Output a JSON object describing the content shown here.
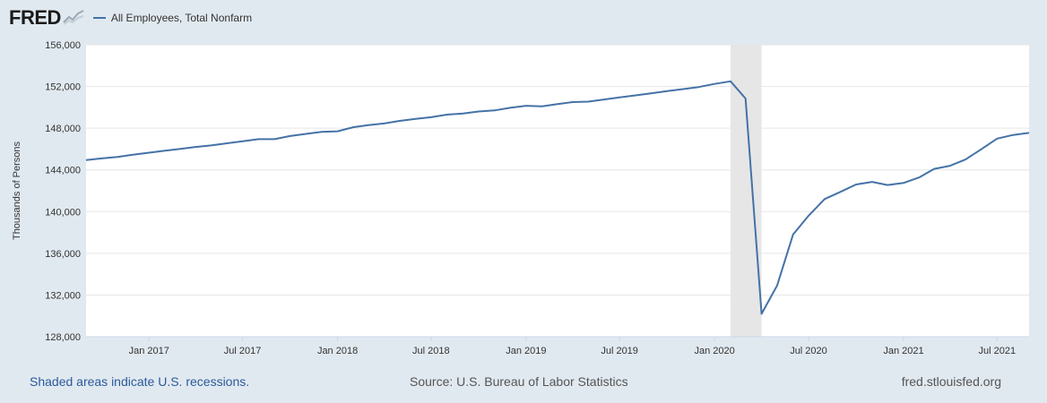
{
  "header": {
    "logo_text": "FRED",
    "logo_icon": "line-chart-icon"
  },
  "chart_data": {
    "type": "line",
    "series": [
      {
        "name": "All Employees, Total Nonfarm",
        "color": "#4572a7",
        "x": [
          "2016-09-01",
          "2016-10-01",
          "2016-11-01",
          "2016-12-01",
          "2017-01-01",
          "2017-02-01",
          "2017-03-01",
          "2017-04-01",
          "2017-05-01",
          "2017-06-01",
          "2017-07-01",
          "2017-08-01",
          "2017-09-01",
          "2017-10-01",
          "2017-11-01",
          "2017-12-01",
          "2018-01-01",
          "2018-02-01",
          "2018-03-01",
          "2018-04-01",
          "2018-05-01",
          "2018-06-01",
          "2018-07-01",
          "2018-08-01",
          "2018-09-01",
          "2018-10-01",
          "2018-11-01",
          "2018-12-01",
          "2019-01-01",
          "2019-02-01",
          "2019-03-01",
          "2019-04-01",
          "2019-05-01",
          "2019-06-01",
          "2019-07-01",
          "2019-08-01",
          "2019-09-01",
          "2019-10-01",
          "2019-11-01",
          "2019-12-01",
          "2020-01-01",
          "2020-02-01",
          "2020-03-01",
          "2020-04-01",
          "2020-05-01",
          "2020-06-01",
          "2020-07-01",
          "2020-08-01",
          "2020-09-01",
          "2020-10-01",
          "2020-11-01",
          "2020-12-01",
          "2021-01-01",
          "2021-02-01",
          "2021-03-01",
          "2021-04-01",
          "2021-05-01",
          "2021-06-01",
          "2021-07-01",
          "2021-08-01",
          "2021-09-01"
        ],
        "values": [
          144950,
          145100,
          145250,
          145450,
          145650,
          145850,
          146000,
          146200,
          146350,
          146550,
          146750,
          146950,
          146950,
          147250,
          147450,
          147650,
          147700,
          148100,
          148300,
          148450,
          148700,
          148900,
          149050,
          149300,
          149400,
          149600,
          149700,
          149950,
          150150,
          150100,
          150300,
          150500,
          150550,
          150750,
          150950,
          151150,
          151350,
          151550,
          151750,
          151950,
          152250,
          152500,
          150850,
          130200,
          132900,
          137800,
          139600,
          141200,
          141900,
          142600,
          142850,
          142550,
          142750,
          143300,
          144100,
          144400,
          145000,
          146000,
          147000,
          147350,
          147550
        ]
      }
    ],
    "ylabel": "Thousands of Persons",
    "ylim": [
      128000,
      156000
    ],
    "yticks": [
      128000,
      132000,
      136000,
      140000,
      144000,
      148000,
      152000,
      156000
    ],
    "ytick_labels": [
      "128,000",
      "132,000",
      "136,000",
      "140,000",
      "144,000",
      "148,000",
      "152,000",
      "156,000"
    ],
    "xlim": [
      "2016-09-01",
      "2021-09-01"
    ],
    "xticks": [
      "2017-01-01",
      "2017-07-01",
      "2018-01-01",
      "2018-07-01",
      "2019-01-01",
      "2019-07-01",
      "2020-01-01",
      "2020-07-01",
      "2021-01-01",
      "2021-07-01"
    ],
    "xtick_labels": [
      "Jan 2017",
      "Jul 2017",
      "Jan 2018",
      "Jul 2018",
      "Jan 2019",
      "Jul 2019",
      "Jan 2020",
      "Jul 2020",
      "Jan 2021",
      "Jul 2021"
    ],
    "recessions": [
      {
        "start": "2020-02-01",
        "end": "2020-04-01"
      }
    ],
    "grid": true,
    "legend_position": "top-left"
  },
  "footer": {
    "recession_note": "Shaded areas indicate U.S. recessions.",
    "source": "Source: U.S. Bureau of Labor Statistics",
    "site": "fred.stlouisfed.org"
  }
}
